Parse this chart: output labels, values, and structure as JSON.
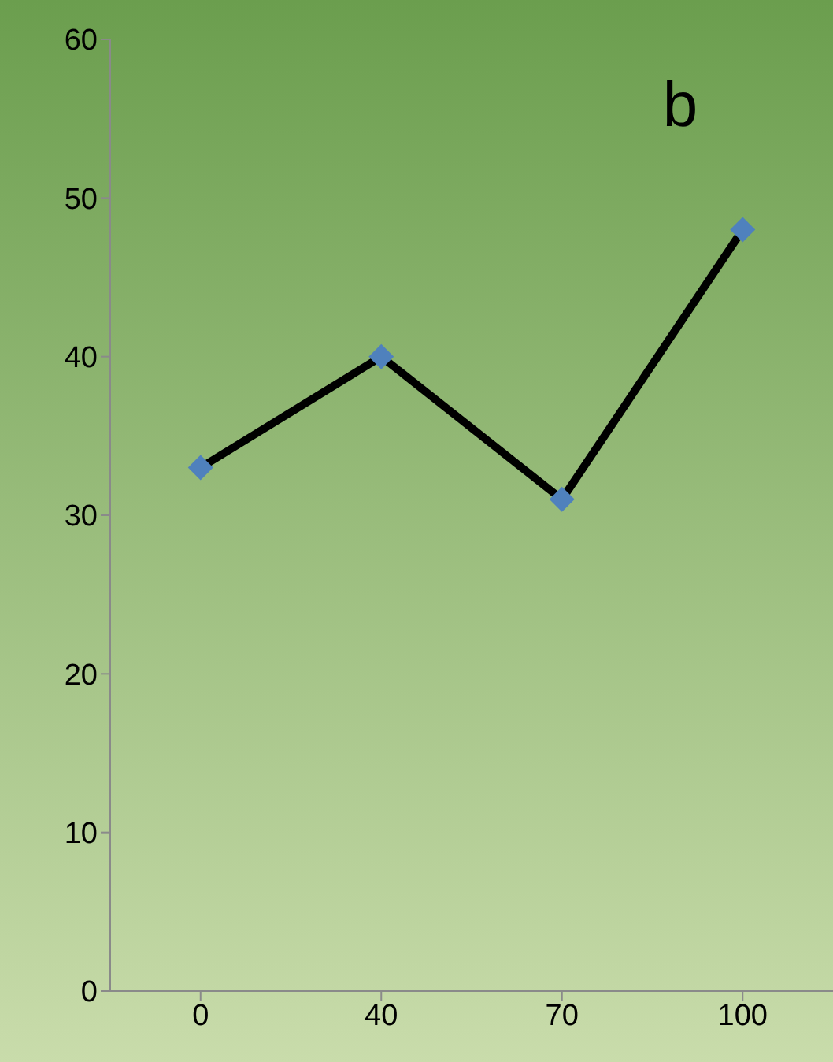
{
  "chart_data": {
    "type": "line",
    "categories": [
      "0",
      "40",
      "70",
      "100"
    ],
    "series": [
      {
        "color": "#000000",
        "colors": [
          "#4f81bd",
          "#4f81bd",
          "#4f81bd",
          "#4f81bd"
        ],
        "values": [
          33,
          40,
          31,
          48
        ]
      }
    ],
    "ylim": [
      0,
      60
    ],
    "yticks": [
      0,
      10,
      20,
      30,
      40,
      50,
      60
    ],
    "marker": "diamond",
    "grid": false,
    "legend": false,
    "annotations": [
      "b"
    ]
  }
}
